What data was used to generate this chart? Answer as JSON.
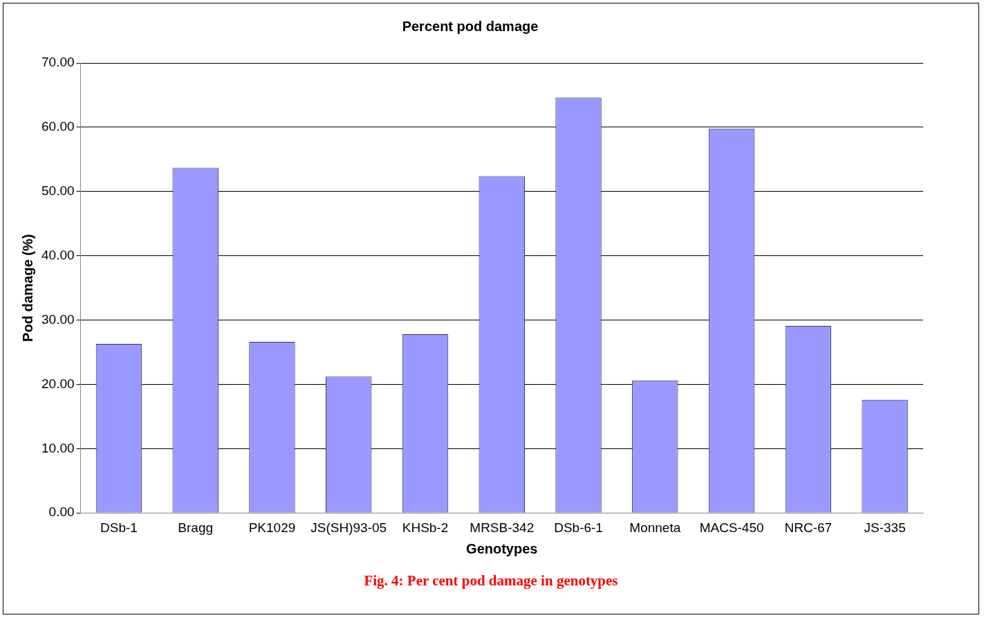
{
  "chart_data": {
    "type": "bar",
    "title": "Percent pod damage",
    "xlabel": "Genotypes",
    "ylabel": "Pod damage (%)",
    "categories": [
      "DSb-1",
      "Bragg",
      "PK1029",
      "JS(SH)93-05",
      "KHSb-2",
      "MRSB-342",
      "DSb-6-1",
      "Monneta",
      "MACS-450",
      "NRC-67",
      "JS-335"
    ],
    "values": [
      26.3,
      53.7,
      26.6,
      21.2,
      27.8,
      52.4,
      64.6,
      20.6,
      59.8,
      29.1,
      17.6
    ],
    "color": "#9999ff",
    "ylim": [
      0,
      70
    ],
    "yticks": [
      {
        "value": 0,
        "label": "0.00"
      },
      {
        "value": 10,
        "label": "10.00"
      },
      {
        "value": 20,
        "label": "20.00"
      },
      {
        "value": 30,
        "label": "30.00"
      },
      {
        "value": 40,
        "label": "40.00"
      },
      {
        "value": 50,
        "label": "50.00"
      },
      {
        "value": 60,
        "label": "60.00"
      },
      {
        "value": 70,
        "label": "70.00"
      }
    ],
    "grid": "y",
    "legend": false,
    "annotations": [
      "Fig. 4: Per cent pod damage in genotypes"
    ]
  }
}
